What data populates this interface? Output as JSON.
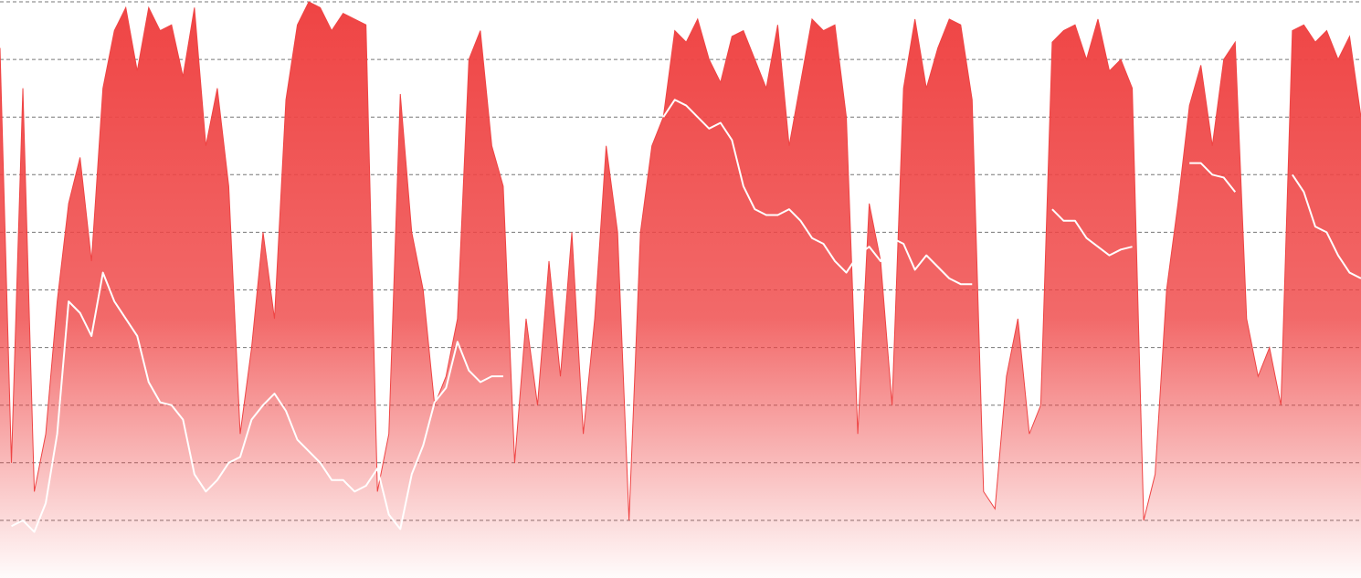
{
  "chart_data": {
    "type": "area",
    "ylim": [
      0,
      10
    ],
    "yticks": [
      1,
      2,
      3,
      4,
      5,
      6,
      7,
      8,
      9,
      10
    ],
    "grid": true,
    "series": [
      {
        "color": "#ef4444",
        "values": [
          9.2,
          2,
          8.5,
          1.5,
          2.5,
          4.8,
          6.5,
          7.3,
          5.5,
          8.5,
          9.5,
          9.9,
          8.8,
          9.9,
          9.5,
          9.6,
          8.7,
          9.9,
          7.5,
          8.5,
          6.8,
          2.5,
          4,
          6,
          4.5,
          8.3,
          9.6,
          10,
          9.9,
          9.5,
          9.8,
          9.7,
          9.6,
          1.5,
          2.5,
          8.4,
          6,
          5,
          3,
          3.5,
          4.5,
          9.0,
          9.5,
          7.5,
          6.8,
          2,
          4.5,
          3,
          5.5,
          3.5,
          6,
          2.5,
          4.5,
          7.5,
          6,
          1,
          6,
          7.5,
          8,
          9.5,
          9.3,
          9.7,
          9.0,
          8.6,
          9.4,
          9.5,
          9.0,
          8.5,
          9.6,
          7.5,
          8.6,
          9.7,
          9.5,
          9.6,
          8.0,
          2.5,
          6.5,
          5.5,
          3,
          8.5,
          9.7,
          8.5,
          9.2,
          9.7,
          9.6,
          8.3,
          1.5,
          1.2,
          3.5,
          4.5,
          2.5,
          3,
          9.3,
          9.5,
          9.6,
          9.0,
          9.7,
          8.8,
          9.0,
          8.5,
          1,
          1.8,
          5,
          6.5,
          8.2,
          8.9,
          7.5,
          9,
          9.3,
          4.5,
          3.5,
          4.0,
          3,
          9.5,
          9.6,
          9.3,
          9.5,
          9.0,
          9.4,
          8.0
        ]
      },
      {
        "color": "#ffffff",
        "values": [
          null,
          0.9,
          1.0,
          0.8,
          1.3,
          2.5,
          4.8,
          4.6,
          4.2,
          5.3,
          4.8,
          4.5,
          4.2,
          3.4,
          3.05,
          3.0,
          2.75,
          1.8,
          1.5,
          1.7,
          2.0,
          2.1,
          2.75,
          3.0,
          3.2,
          2.9,
          2.4,
          2.2,
          2.0,
          1.7,
          1.7,
          1.5,
          1.6,
          1.9,
          1.1,
          0.85,
          1.8,
          2.3,
          3.05,
          3.3,
          4.1,
          3.6,
          3.4,
          3.5,
          3.5,
          null,
          null,
          null,
          null,
          null,
          null,
          null,
          null,
          null,
          null,
          null,
          null,
          null,
          8.0,
          8.3,
          8.2,
          8.0,
          7.8,
          7.9,
          7.6,
          6.8,
          6.4,
          6.3,
          6.3,
          6.4,
          6.2,
          5.9,
          5.8,
          5.5,
          5.3,
          5.6,
          5.75,
          5.5,
          5.9,
          5.8,
          5.35,
          5.6,
          5.4,
          5.2,
          5.1,
          5.1,
          null,
          null,
          null,
          null,
          null,
          null,
          6.4,
          6.2,
          6.2,
          5.9,
          5.75,
          5.6,
          5.7,
          5.75,
          null,
          null,
          null,
          null,
          7.2,
          7.2,
          7.0,
          6.95,
          6.7,
          null,
          null,
          null,
          null,
          7.0,
          6.7,
          6.1,
          6.0,
          5.6,
          5.3,
          5.2
        ]
      }
    ]
  }
}
